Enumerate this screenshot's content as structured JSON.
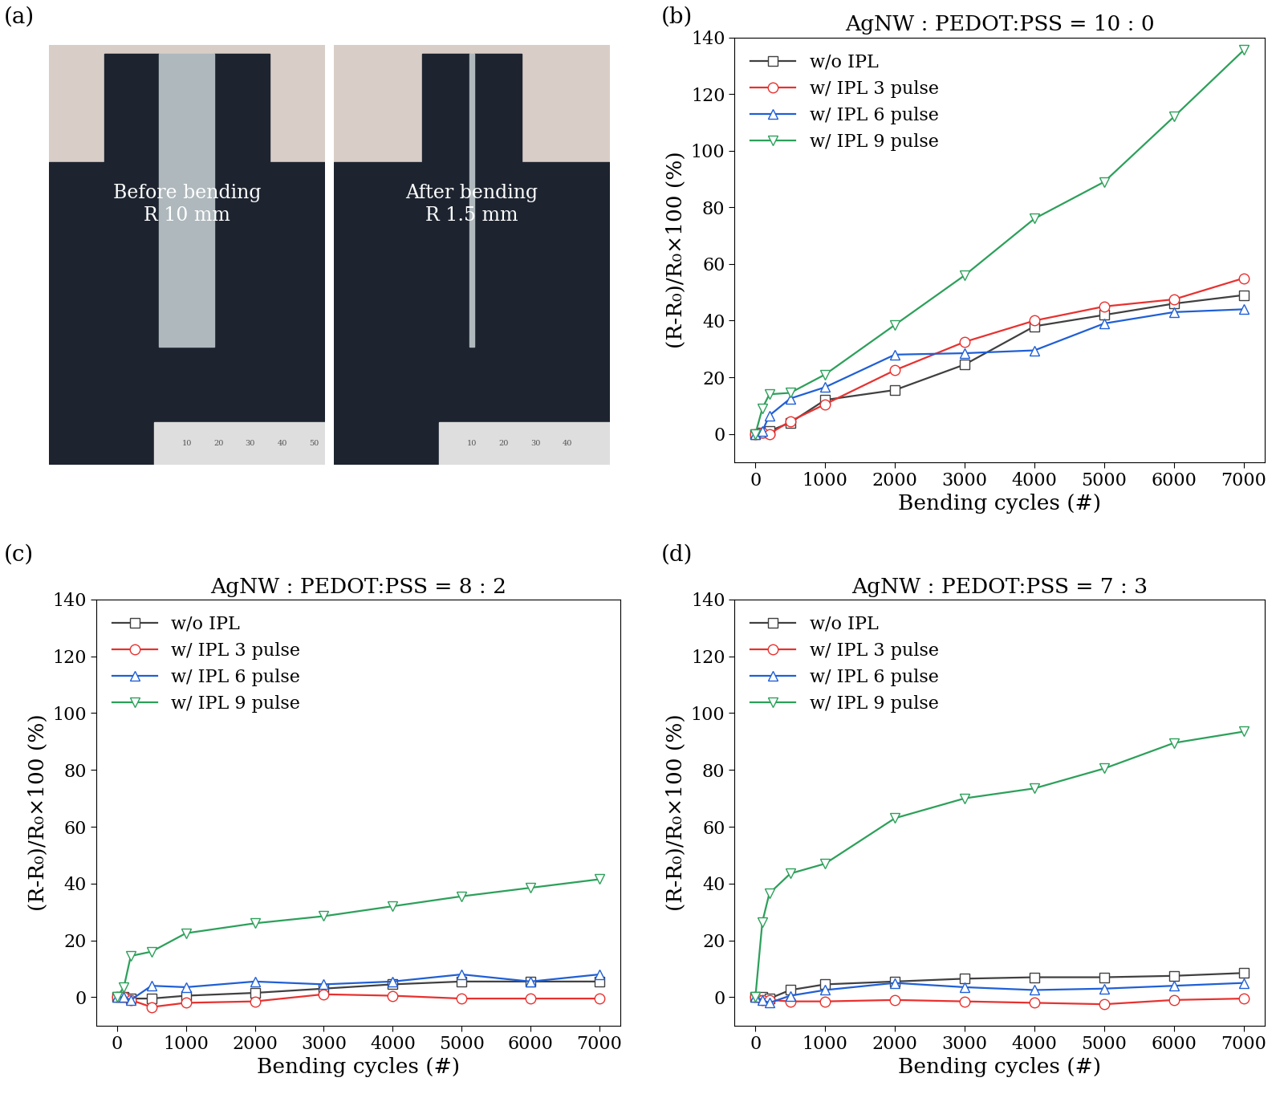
{
  "chart_data": [
    {
      "type": "photo",
      "panel": "(a)",
      "photos": [
        {
          "text": "Before bending\nR 10 mm",
          "ruler_labels": [
            "10",
            "20",
            "30",
            "40",
            "50"
          ]
        },
        {
          "text": "After bending\nR 1.5 mm",
          "ruler_labels": [
            "10",
            "20",
            "30",
            "40"
          ]
        }
      ]
    },
    {
      "type": "line",
      "panel": "(b)",
      "title": "AgNW : PEDOT:PSS = 10 : 0",
      "x_label": "Bending cycles (#)",
      "y_label": "(R-R₀)/R₀×100 (%)",
      "x": [
        0,
        100,
        200,
        500,
        1000,
        2000,
        3000,
        4000,
        5000,
        6000,
        7000
      ],
      "xlim": [
        -300,
        7300
      ],
      "xticks": [
        0,
        1000,
        2000,
        3000,
        4000,
        5000,
        6000,
        7000
      ],
      "ylim": [
        -10,
        140
      ],
      "yticks": [
        0,
        20,
        40,
        60,
        80,
        100,
        120,
        140
      ],
      "legend": "upper left",
      "series": [
        {
          "name": "w/o IPL",
          "color": "#404040",
          "marker": "square",
          "values": [
            0,
            0.5,
            1,
            4,
            12,
            15.5,
            24.5,
            38,
            42,
            46,
            49
          ]
        },
        {
          "name": "w/ IPL 3 pulse",
          "color": "#e8312f",
          "marker": "circle",
          "values": [
            0,
            0.5,
            0,
            4.5,
            10.5,
            22.5,
            32.5,
            40,
            45,
            47.5,
            55
          ]
        },
        {
          "name": "w/ IPL 6 pulse",
          "color": "#1f5fd6",
          "marker": "triangle-up",
          "values": [
            0,
            1,
            6.5,
            12.5,
            16.5,
            28,
            28.5,
            29.5,
            39,
            43,
            44
          ]
        },
        {
          "name": "w/ IPL 9 pulse",
          "color": "#2ca05a",
          "marker": "triangle-down",
          "values": [
            0,
            9,
            14,
            14.5,
            21,
            38.5,
            56,
            76,
            89,
            112,
            135.5
          ]
        }
      ]
    },
    {
      "type": "line",
      "panel": "(c)",
      "title": "AgNW : PEDOT:PSS = 8 : 2",
      "x_label": "Bending cycles (#)",
      "y_label": "(R-R₀)/R₀×100 (%)",
      "x": [
        0,
        100,
        200,
        500,
        1000,
        2000,
        3000,
        4000,
        5000,
        6000,
        7000
      ],
      "xlim": [
        -300,
        7300
      ],
      "xticks": [
        0,
        1000,
        2000,
        3000,
        4000,
        5000,
        6000,
        7000
      ],
      "ylim": [
        -10,
        140
      ],
      "yticks": [
        0,
        20,
        40,
        60,
        80,
        100,
        120,
        140
      ],
      "legend": "upper left",
      "series": [
        {
          "name": "w/o IPL",
          "color": "#404040",
          "marker": "square",
          "values": [
            0,
            0,
            -0.5,
            -0.5,
            0.5,
            1.5,
            3,
            4.5,
            5.5,
            5.5,
            5.5
          ]
        },
        {
          "name": "w/ IPL 3 pulse",
          "color": "#e8312f",
          "marker": "circle",
          "values": [
            0,
            0,
            -1,
            -3.5,
            -2,
            -1.5,
            1,
            0.5,
            -0.5,
            -0.5,
            -0.5
          ]
        },
        {
          "name": "w/ IPL 6 pulse",
          "color": "#1f5fd6",
          "marker": "triangle-up",
          "values": [
            0,
            0,
            -1,
            4,
            3.5,
            5.5,
            4.5,
            5.5,
            8,
            5.5,
            8
          ]
        },
        {
          "name": "w/ IPL 9 pulse",
          "color": "#2ca05a",
          "marker": "triangle-down",
          "values": [
            0,
            3.5,
            14.5,
            16,
            22.5,
            26,
            28.5,
            32,
            35.5,
            38.5,
            41.5
          ]
        }
      ]
    },
    {
      "type": "line",
      "panel": "(d)",
      "title": "AgNW : PEDOT:PSS = 7 : 3",
      "x_label": "Bending cycles (#)",
      "y_label": "(R-R₀)/R₀×100 (%)",
      "x": [
        0,
        100,
        200,
        500,
        1000,
        2000,
        3000,
        4000,
        5000,
        6000,
        7000
      ],
      "xlim": [
        -300,
        7300
      ],
      "xticks": [
        0,
        1000,
        2000,
        3000,
        4000,
        5000,
        6000,
        7000
      ],
      "ylim": [
        -10,
        140
      ],
      "yticks": [
        0,
        20,
        40,
        60,
        80,
        100,
        120,
        140
      ],
      "legend": "upper left",
      "series": [
        {
          "name": "w/o IPL",
          "color": "#404040",
          "marker": "square",
          "values": [
            0,
            0,
            -0.5,
            2.5,
            4.5,
            5.5,
            6.5,
            7,
            7,
            7.5,
            8.5
          ]
        },
        {
          "name": "w/ IPL 3 pulse",
          "color": "#e8312f",
          "marker": "circle",
          "values": [
            0,
            -1,
            -1,
            -1.5,
            -1.5,
            -1,
            -1.5,
            -2,
            -2.5,
            -1,
            -0.5
          ]
        },
        {
          "name": "w/ IPL 6 pulse",
          "color": "#1f5fd6",
          "marker": "triangle-up",
          "values": [
            0,
            -1,
            -2,
            0.5,
            2.5,
            5,
            3.5,
            2.5,
            3,
            4,
            5
          ]
        },
        {
          "name": "w/ IPL 9 pulse",
          "color": "#2ca05a",
          "marker": "triangle-down",
          "values": [
            0,
            26.5,
            36.5,
            43.5,
            47,
            63,
            70,
            73.5,
            80.5,
            89.5,
            93.5
          ]
        }
      ]
    }
  ]
}
